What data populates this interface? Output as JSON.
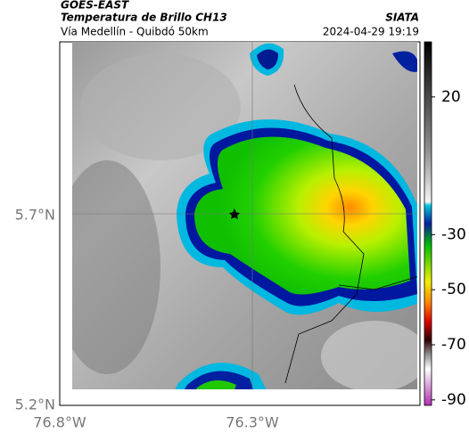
{
  "header": {
    "source": "GOES-EAST",
    "title": "Temperatura de Brillo CH13",
    "subtitle": "Vía Medellín - Quibdó 50km",
    "org": "SIATA",
    "datetime": "2024-04-29 19:19"
  },
  "axes": {
    "lat_labels": [
      "5.7°N",
      "5.2°N"
    ],
    "lon_labels": [
      "76.8°W",
      "76.3°W"
    ]
  },
  "colorbar": {
    "lim": [
      -92,
      40
    ],
    "ticks": [
      20,
      -30,
      -50,
      -70,
      -90
    ]
  }
}
